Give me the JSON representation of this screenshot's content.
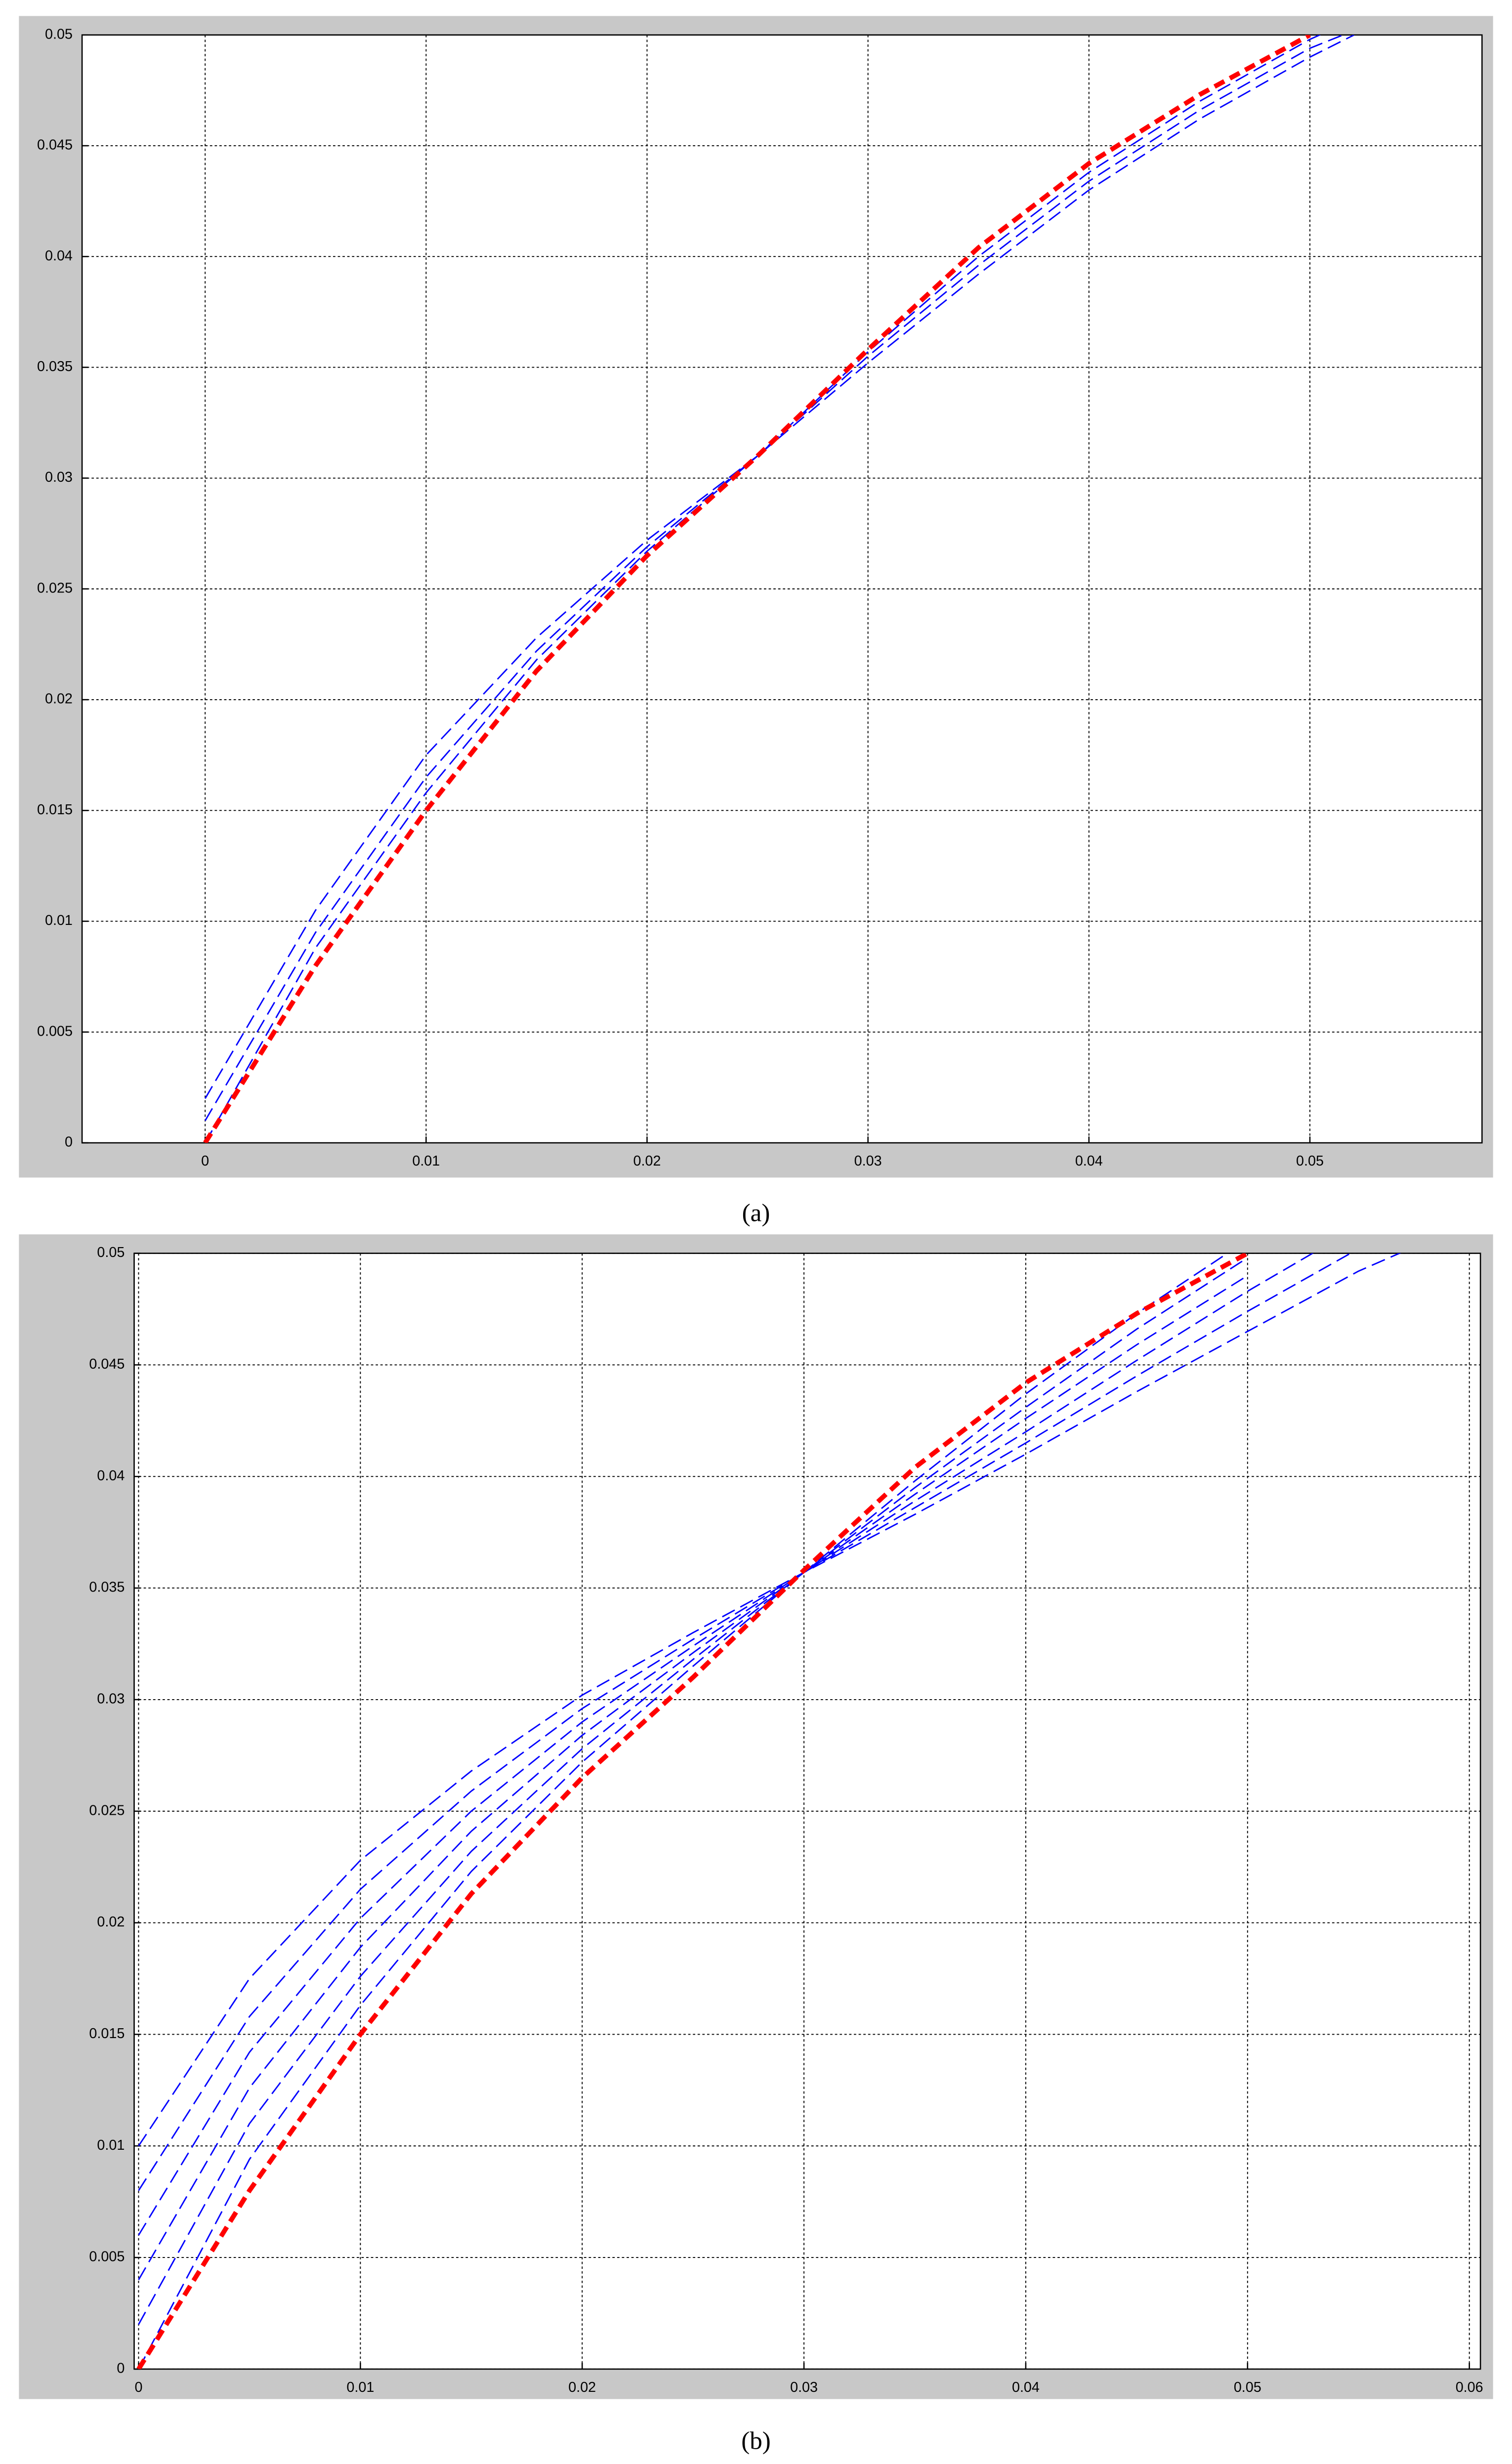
{
  "chart_data": [
    {
      "type": "line",
      "caption": "(a)",
      "x": [
        0,
        0.005,
        0.01,
        0.015,
        0.02,
        0.025,
        0.03,
        0.035,
        0.04,
        0.045,
        0.05,
        0.052
      ],
      "series": [
        {
          "color": "#0000ff",
          "values": [
            0.002,
            0.0105,
            0.0175,
            0.0228,
            0.0272,
            0.031,
            0.0352,
            0.0392,
            0.043,
            0.0462,
            0.049,
            0.05
          ]
        },
        {
          "color": "#0000ff",
          "values": [
            0.001,
            0.0095,
            0.0165,
            0.0222,
            0.0269,
            0.031,
            0.0355,
            0.0396,
            0.0434,
            0.0466,
            0.0494,
            0.0502
          ]
        },
        {
          "color": "#0000ff",
          "values": [
            0,
            0.0088,
            0.0158,
            0.0218,
            0.0267,
            0.031,
            0.0357,
            0.04,
            0.0438,
            0.047,
            0.0498,
            0.0507
          ]
        },
        {
          "color": "#ff0000",
          "values": [
            0,
            0.008,
            0.015,
            0.0213,
            0.0265,
            0.031,
            0.0358,
            0.0404,
            0.0442,
            0.0473,
            0.05,
            null
          ]
        }
      ],
      "xlim": [
        -0.00557,
        0.05779
      ],
      "ylim": [
        0,
        0.05
      ],
      "xticks": [
        0,
        0.01,
        0.02,
        0.03,
        0.04,
        0.05
      ],
      "yticks": [
        0,
        0.005,
        0.01,
        0.015,
        0.02,
        0.025,
        0.03,
        0.035,
        0.04,
        0.045,
        0.05
      ],
      "grid": true
    },
    {
      "type": "line",
      "caption": "(b)",
      "x": [
        0,
        0.005,
        0.01,
        0.015,
        0.02,
        0.025,
        0.03,
        0.035,
        0.04,
        0.045,
        0.05,
        0.055,
        0.058
      ],
      "series": [
        {
          "color": "#0000ff",
          "values": [
            0.01,
            0.0175,
            0.0228,
            0.0268,
            0.0302,
            0.033,
            0.0357,
            0.0383,
            0.041,
            0.0438,
            0.0465,
            0.0492,
            0.0505
          ]
        },
        {
          "color": "#0000ff",
          "values": [
            0.008,
            0.0158,
            0.0215,
            0.0259,
            0.0296,
            0.0327,
            0.0357,
            0.0386,
            0.0415,
            0.0445,
            0.0474,
            0.0502,
            null
          ]
        },
        {
          "color": "#0000ff",
          "values": [
            0.006,
            0.0142,
            0.0202,
            0.025,
            0.029,
            0.0324,
            0.0357,
            0.0389,
            0.042,
            0.0452,
            0.0483,
            0.0512,
            null
          ]
        },
        {
          "color": "#0000ff",
          "values": [
            0.004,
            0.0126,
            0.0189,
            0.0241,
            0.0284,
            0.0321,
            0.0357,
            0.0392,
            0.0426,
            0.0459,
            0.049,
            null,
            null
          ]
        },
        {
          "color": "#0000ff",
          "values": [
            0.002,
            0.011,
            0.0176,
            0.0232,
            0.0278,
            0.0318,
            0.0357,
            0.0395,
            0.0431,
            0.0466,
            0.0498,
            null,
            null
          ]
        },
        {
          "color": "#0000ff",
          "values": [
            0,
            0.0094,
            0.0163,
            0.0223,
            0.0272,
            0.0315,
            0.0357,
            0.0398,
            0.0437,
            0.0473,
            0.0506,
            null,
            null
          ]
        },
        {
          "color": "#ff0000",
          "values": [
            0,
            0.008,
            0.015,
            0.0213,
            0.0265,
            0.031,
            0.0358,
            0.0404,
            0.0442,
            0.0473,
            0.05,
            null,
            null
          ]
        }
      ],
      "xlim": [
        -0.0002,
        0.0605
      ],
      "ylim": [
        0,
        0.05
      ],
      "xticks": [
        0,
        0.01,
        0.02,
        0.03,
        0.04,
        0.05,
        0.06
      ],
      "yticks": [
        0,
        0.005,
        0.01,
        0.015,
        0.02,
        0.025,
        0.03,
        0.035,
        0.04,
        0.045,
        0.05
      ],
      "grid": true
    }
  ]
}
